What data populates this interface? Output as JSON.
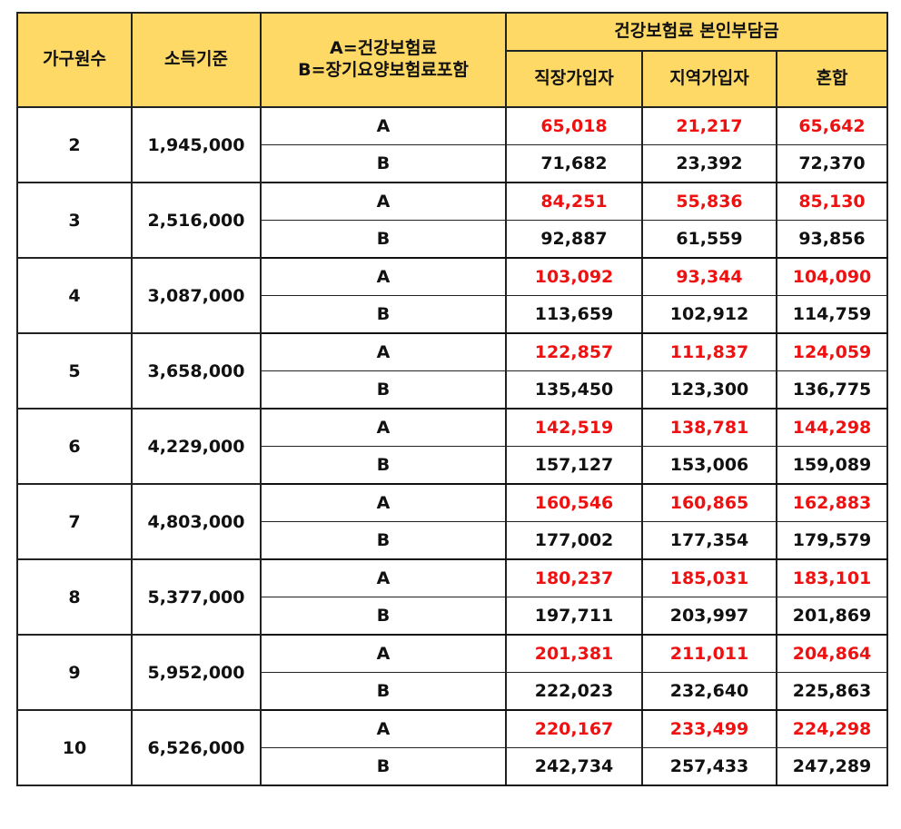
{
  "header": {
    "members": "가구원수",
    "income": "소득기준",
    "legend_a": "A=건강보험료",
    "legend_b": "B=장기요양보험료포함",
    "premium_group": "건강보험료 본인부담금",
    "employee": "직장가입자",
    "regional": "지역가입자",
    "mixed": "혼합"
  },
  "rows": [
    {
      "members": "2",
      "income": "1,945,000",
      "a": {
        "label": "A",
        "employee": "65,018",
        "regional": "21,217",
        "mixed": "65,642"
      },
      "b": {
        "label": "B",
        "employee": "71,682",
        "regional": "23,392",
        "mixed": "72,370"
      }
    },
    {
      "members": "3",
      "income": "2,516,000",
      "a": {
        "label": "A",
        "employee": "84,251",
        "regional": "55,836",
        "mixed": "85,130"
      },
      "b": {
        "label": "B",
        "employee": "92,887",
        "regional": "61,559",
        "mixed": "93,856"
      }
    },
    {
      "members": "4",
      "income": "3,087,000",
      "a": {
        "label": "A",
        "employee": "103,092",
        "regional": "93,344",
        "mixed": "104,090"
      },
      "b": {
        "label": "B",
        "employee": "113,659",
        "regional": "102,912",
        "mixed": "114,759"
      }
    },
    {
      "members": "5",
      "income": "3,658,000",
      "a": {
        "label": "A",
        "employee": "122,857",
        "regional": "111,837",
        "mixed": "124,059"
      },
      "b": {
        "label": "B",
        "employee": "135,450",
        "regional": "123,300",
        "mixed": "136,775"
      }
    },
    {
      "members": "6",
      "income": "4,229,000",
      "a": {
        "label": "A",
        "employee": "142,519",
        "regional": "138,781",
        "mixed": "144,298"
      },
      "b": {
        "label": "B",
        "employee": "157,127",
        "regional": "153,006",
        "mixed": "159,089"
      }
    },
    {
      "members": "7",
      "income": "4,803,000",
      "a": {
        "label": "A",
        "employee": "160,546",
        "regional": "160,865",
        "mixed": "162,883"
      },
      "b": {
        "label": "B",
        "employee": "177,002",
        "regional": "177,354",
        "mixed": "179,579"
      }
    },
    {
      "members": "8",
      "income": "5,377,000",
      "a": {
        "label": "A",
        "employee": "180,237",
        "regional": "185,031",
        "mixed": "183,101"
      },
      "b": {
        "label": "B",
        "employee": "197,711",
        "regional": "203,997",
        "mixed": "201,869"
      }
    },
    {
      "members": "9",
      "income": "5,952,000",
      "a": {
        "label": "A",
        "employee": "201,381",
        "regional": "211,011",
        "mixed": "204,864"
      },
      "b": {
        "label": "B",
        "employee": "222,023",
        "regional": "232,640",
        "mixed": "225,863"
      }
    },
    {
      "members": "10",
      "income": "6,526,000",
      "a": {
        "label": "A",
        "employee": "220,167",
        "regional": "233,499",
        "mixed": "224,298"
      },
      "b": {
        "label": "B",
        "employee": "242,734",
        "regional": "257,433",
        "mixed": "247,289"
      }
    }
  ],
  "colors": {
    "header_bg": "#ffd966",
    "a_value_text": "#ee1111",
    "b_value_text": "#111111"
  }
}
